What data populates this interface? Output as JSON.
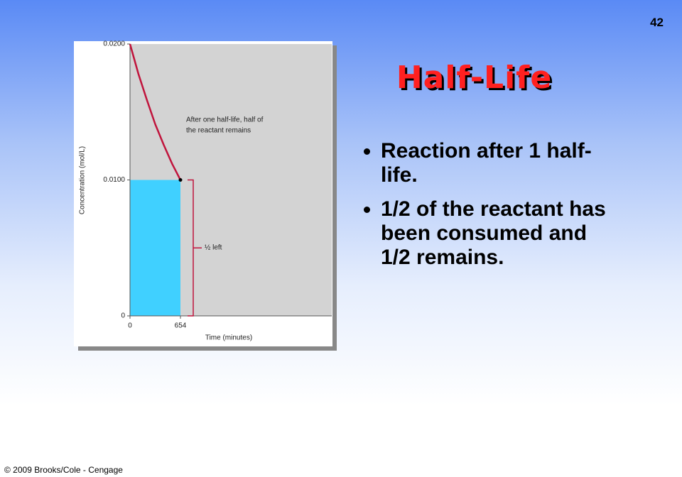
{
  "slide_number": "42",
  "title": "Half-Life",
  "bullets": [
    "Reaction after 1 half-life.",
    "1/2 of the reactant has been consumed and 1/2 remains."
  ],
  "footer": "© 2009 Brooks/Cole - Cengage",
  "chart_data": {
    "type": "line",
    "x_label": "Time (minutes)",
    "y_label": "Concentration (mol/L)",
    "annotations": {
      "note": [
        "After one half-life, half of",
        "the reactant remains"
      ],
      "half_left": "½ left"
    },
    "x": [
      0,
      109,
      218,
      327,
      436,
      545,
      654
    ],
    "series": [
      {
        "color": "#c0143c",
        "values": [
          0.02,
          0.0178,
          0.0159,
          0.0141,
          0.0126,
          0.0112,
          0.01
        ]
      }
    ],
    "fill_color": "#40d0ff",
    "xlim": [
      0,
      2616
    ],
    "xticks": [
      0,
      654
    ],
    "ylim": [
      0,
      0.02
    ],
    "yticks": [
      {
        "value": 0,
        "label": "0"
      },
      {
        "value": 0.01,
        "label": "0.0100"
      },
      {
        "value": 0.02,
        "label": "0.0200"
      }
    ]
  }
}
